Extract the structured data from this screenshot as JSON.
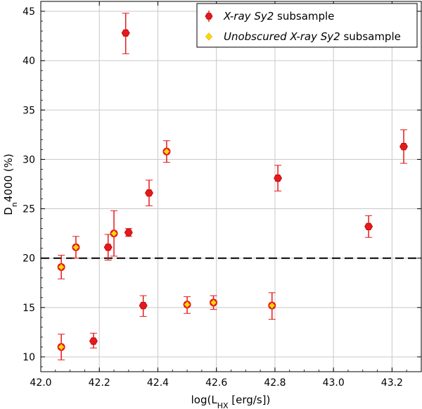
{
  "chart_data": {
    "type": "scatter",
    "xlabel": "log(L_HX [erg/s])",
    "xlabel_parts": {
      "pre": "log(L",
      "sub": "HX",
      "post": " [erg/s])"
    },
    "ylabel": "D_n4000 (%)",
    "ylabel_parts": {
      "pre": "D",
      "sub": "n",
      "post": "4000 (%)"
    },
    "xlim": [
      42.0,
      43.3
    ],
    "ylim": [
      8.5,
      46.0
    ],
    "xticks": [
      42.0,
      42.2,
      42.4,
      42.6,
      42.8,
      43.0,
      43.2
    ],
    "xtick_labels": [
      "42.0",
      "42.2",
      "42.4",
      "42.6",
      "42.8",
      "43.0",
      "43.2"
    ],
    "yticks": [
      10,
      15,
      20,
      25,
      30,
      35,
      40,
      45
    ],
    "ytick_labels": [
      "10",
      "15",
      "20",
      "25",
      "30",
      "35",
      "40",
      "45"
    ],
    "grid": true,
    "threshold_line": {
      "y": 20,
      "style": "dashed"
    },
    "legend": {
      "position": "top-right",
      "entries": [
        {
          "italic": "X-ray Sy2",
          "plain": " subsample"
        },
        {
          "italic": "Unobscured X-ray Sy2",
          "plain": " subsample"
        }
      ]
    },
    "colors": {
      "sy2_marker": "#e31a1c",
      "unobscured_marker": "#ffd700",
      "errorbar": "#e31a1c",
      "grid": "#c8c8c8",
      "threshold": "#000000"
    },
    "series": [
      {
        "name": "X-ray Sy2 subsample",
        "marker": "hexagon",
        "points": [
          {
            "x": 42.18,
            "y": 11.6,
            "err_lo": 0.7,
            "err_hi": 0.8
          },
          {
            "x": 42.23,
            "y": 21.1,
            "err_lo": 1.3,
            "err_hi": 1.3
          },
          {
            "x": 42.29,
            "y": 42.8,
            "err_lo": 2.1,
            "err_hi": 2.0
          },
          {
            "x": 42.3,
            "y": 22.6,
            "err_lo": 0.4,
            "err_hi": 0.4
          },
          {
            "x": 42.35,
            "y": 15.2,
            "err_lo": 1.1,
            "err_hi": 1.0
          },
          {
            "x": 42.37,
            "y": 26.6,
            "err_lo": 1.3,
            "err_hi": 1.3
          },
          {
            "x": 42.81,
            "y": 28.1,
            "err_lo": 1.3,
            "err_hi": 1.3
          },
          {
            "x": 43.12,
            "y": 23.2,
            "err_lo": 1.1,
            "err_hi": 1.1
          },
          {
            "x": 43.24,
            "y": 31.3,
            "err_lo": 1.7,
            "err_hi": 1.7
          }
        ]
      },
      {
        "name": "Unobscured X-ray Sy2 subsample",
        "marker": "diamond",
        "points": [
          {
            "x": 42.07,
            "y": 11.0,
            "err_lo": 1.3,
            "err_hi": 1.3
          },
          {
            "x": 42.07,
            "y": 19.1,
            "err_lo": 1.2,
            "err_hi": 1.2
          },
          {
            "x": 42.12,
            "y": 21.1,
            "err_lo": 1.1,
            "err_hi": 1.1
          },
          {
            "x": 42.25,
            "y": 22.5,
            "err_lo": 2.3,
            "err_hi": 2.3
          },
          {
            "x": 42.43,
            "y": 30.8,
            "err_lo": 1.1,
            "err_hi": 1.1
          },
          {
            "x": 42.5,
            "y": 15.3,
            "err_lo": 0.9,
            "err_hi": 0.8
          },
          {
            "x": 42.59,
            "y": 15.5,
            "err_lo": 0.7,
            "err_hi": 0.7
          },
          {
            "x": 42.79,
            "y": 15.2,
            "err_lo": 1.4,
            "err_hi": 1.3
          }
        ]
      }
    ]
  }
}
